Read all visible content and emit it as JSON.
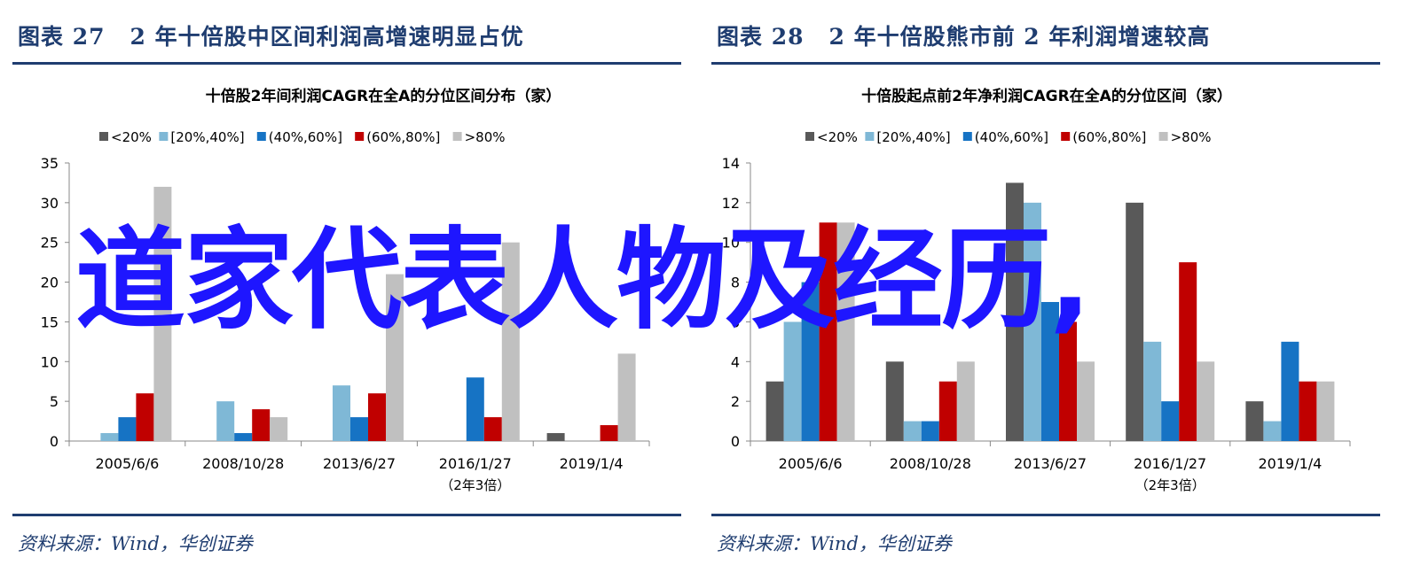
{
  "colors": {
    "title": "#1f3d70",
    "overlay": "#1e16ff",
    "series": [
      "#595959",
      "#7fb8d6",
      "#1673c4",
      "#c00000",
      "#c0c0c0"
    ]
  },
  "left": {
    "fig_label": "图表 27",
    "fig_title": "2 年十倍股中区间利润高增速明显占优",
    "source": "资料来源：Wind，华创证券"
  },
  "right": {
    "fig_label": "图表 28",
    "fig_title": "2 年十倍股熊市前 2 年利润增速较高",
    "source": "资料来源：Wind，华创证券"
  },
  "overlay_text": "道家代表人物及经历,",
  "chart_data": [
    {
      "type": "bar",
      "title": "十倍股2年间利润CAGR在全A的分位区间分布（家）",
      "categories": [
        "2005/6/6",
        "2008/10/28",
        "2013/6/27",
        "2016/1/27",
        "2019/1/4"
      ],
      "category_sublabels": [
        "",
        "",
        "",
        "（2年3倍）",
        ""
      ],
      "ylim": [
        0,
        35
      ],
      "yticks": [
        0,
        5,
        10,
        15,
        20,
        25,
        30,
        35
      ],
      "legend_position": "top",
      "grid": false,
      "series": [
        {
          "name": "<20%",
          "values": [
            0,
            0,
            0,
            0,
            1
          ]
        },
        {
          "name": "[20%,40%]",
          "values": [
            1,
            5,
            7,
            0,
            0
          ]
        },
        {
          "name": "(40%,60%]",
          "values": [
            3,
            1,
            3,
            8,
            0
          ]
        },
        {
          "name": "(60%,80%]",
          "values": [
            6,
            4,
            6,
            3,
            2
          ]
        },
        {
          "name": ">80%",
          "values": [
            32,
            3,
            21,
            25,
            11
          ]
        }
      ]
    },
    {
      "type": "bar",
      "title": "十倍股起点前2年净利润CAGR在全A的分位区间（家）",
      "categories": [
        "2005/6/6",
        "2008/10/28",
        "2013/6/27",
        "2016/1/27",
        "2019/1/4"
      ],
      "category_sublabels": [
        "",
        "",
        "",
        "（2年3倍）",
        ""
      ],
      "ylim": [
        0,
        14
      ],
      "yticks": [
        0,
        2,
        4,
        6,
        8,
        10,
        12,
        14
      ],
      "legend_position": "top",
      "grid": false,
      "series": [
        {
          "name": "<20%",
          "values": [
            3,
            4,
            13,
            12,
            2
          ]
        },
        {
          "name": "[20%,40%]",
          "values": [
            6,
            1,
            12,
            5,
            1
          ]
        },
        {
          "name": "(40%,60%]",
          "values": [
            8,
            1,
            7,
            2,
            5
          ]
        },
        {
          "name": "(60%,80%]",
          "values": [
            11,
            3,
            6,
            9,
            3
          ]
        },
        {
          "name": ">80%",
          "values": [
            11,
            4,
            4,
            4,
            3
          ]
        }
      ]
    }
  ]
}
